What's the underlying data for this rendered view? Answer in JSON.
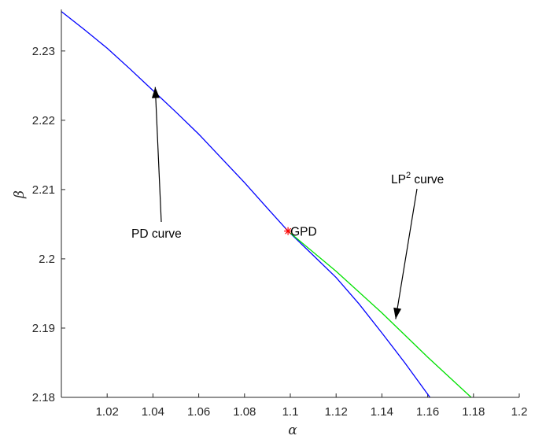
{
  "chart_data": {
    "type": "line",
    "title": "",
    "xlabel": "α",
    "ylabel": "β",
    "xlim": [
      1.0,
      1.2
    ],
    "ylim": [
      2.18,
      2.236
    ],
    "grid": false,
    "x_ticks": [
      1.02,
      1.04,
      1.06,
      1.08,
      1.1,
      1.12,
      1.14,
      1.16,
      1.18,
      1.2
    ],
    "x_tick_labels": [
      "1.02",
      "1.04",
      "1.06",
      "1.08",
      "1.1",
      "1.12",
      "1.14",
      "1.16",
      "1.18",
      "1.2"
    ],
    "y_ticks": [
      2.18,
      2.19,
      2.2,
      2.21,
      2.22,
      2.23
    ],
    "y_tick_labels": [
      "2.18",
      "2.19",
      "2.2",
      "2.21",
      "2.22",
      "2.23"
    ],
    "series": [
      {
        "color": "#0000ff",
        "x": [
          1.0,
          1.01,
          1.02,
          1.03,
          1.04,
          1.05,
          1.06,
          1.07,
          1.08,
          1.09,
          1.099,
          1.11,
          1.12,
          1.13,
          1.14,
          1.15,
          1.161
        ],
        "y": [
          2.2357,
          2.2331,
          2.2304,
          2.2274,
          2.2243,
          2.2212,
          2.218,
          2.2145,
          2.211,
          2.2073,
          2.204,
          2.2005,
          2.1973,
          2.1935,
          2.1893,
          2.185,
          2.18
        ]
      },
      {
        "color": "#00e000",
        "x": [
          1.099,
          1.12,
          1.14,
          1.16,
          1.179
        ],
        "y": [
          2.204,
          2.1982,
          2.1922,
          2.1858,
          2.18
        ]
      }
    ],
    "markers": [
      {
        "label": "GPD",
        "x": 1.099,
        "y": 2.204,
        "color": "#ff0000",
        "symbol": "*"
      }
    ],
    "annotations": [
      {
        "text": "PD curve",
        "arrow_to": [
          1.041,
          2.2248
        ]
      },
      {
        "text": "LP",
        "superscript": "2",
        "suffix": " curve",
        "arrow_to": [
          1.146,
          2.1913
        ]
      }
    ]
  }
}
